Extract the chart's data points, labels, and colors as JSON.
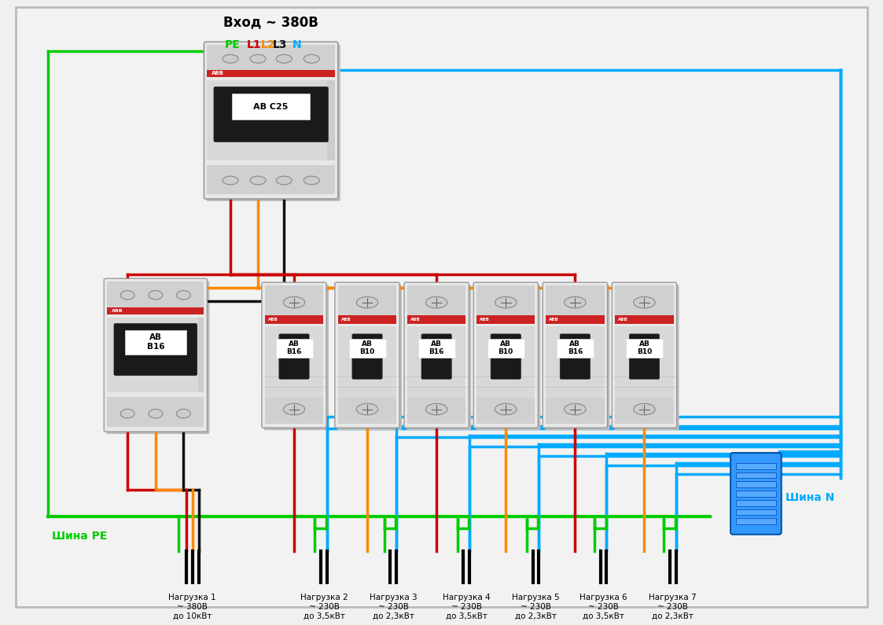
{
  "title": "Вход ~ 380В",
  "bg_color": "#f0f0f0",
  "c_pe": "#00cc00",
  "c_l1": "#cc0000",
  "c_l2": "#ff8800",
  "c_l3": "#111111",
  "c_n": "#00aaff",
  "c_l3_label": "#cc0000",
  "shina_PE": "Шина PE",
  "shina_N": "Шина N",
  "main_label": "АВ С25",
  "tp_label_line1": "АВ",
  "tp_label_line2": "В16",
  "sp_labels": [
    "АВ\nВ16",
    "АВ\nВ10",
    "АВ\nВ16",
    "АВ\nВ10",
    "АВ\nВ16",
    "АВ\nВ10"
  ],
  "load_labels": [
    "Нагрузка 1\n~ 380В\nдо 10кВт",
    "Нагрузка 2\n~ 230В\nдо 3,5кВт",
    "Нагрузка 3\n~ 230В\nдо 2,3кВт",
    "Нагрузка 4\n~ 230В\nдо 3,5кВт",
    "Нагрузка 5\n~ 230В\nдо 2,3кВт",
    "Нагрузка 6\n~ 230В\nдо 3,5кВт",
    "Нагрузка 7\n~ 230В\nдо 2,3кВт"
  ]
}
